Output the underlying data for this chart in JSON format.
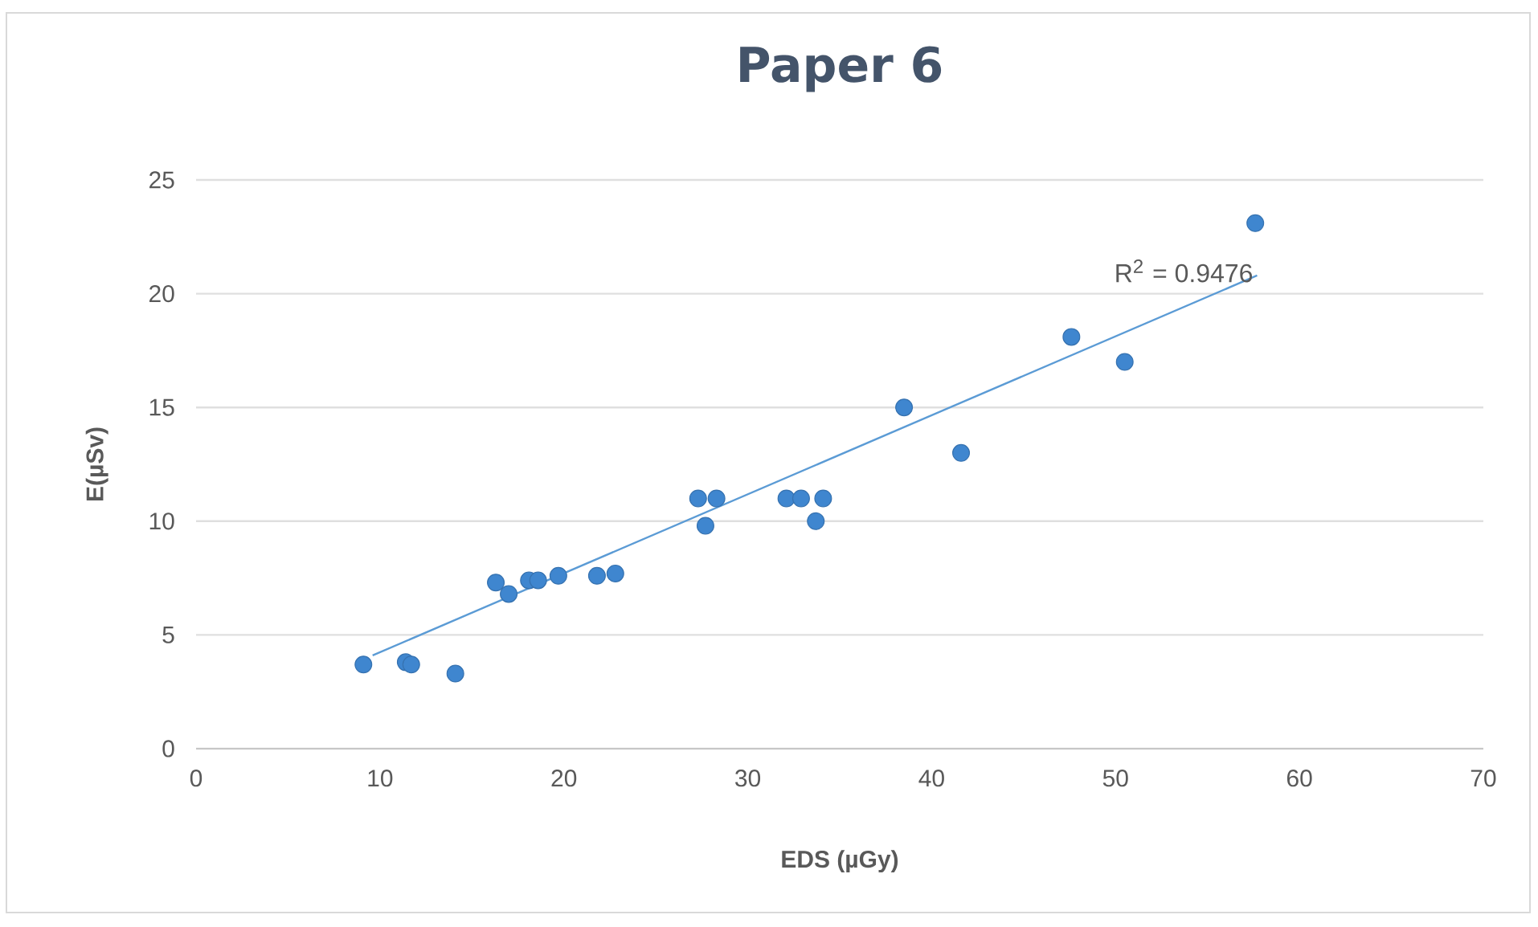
{
  "chart_data": {
    "type": "scatter",
    "title": "Paper 6",
    "xlabel": "EDS  (µGy)",
    "ylabel": "E(µSv)",
    "xlim": [
      0,
      70
    ],
    "xticks": [
      0,
      10,
      20,
      30,
      40,
      50,
      60,
      70
    ],
    "ylim": [
      0,
      25
    ],
    "yticks": [
      0,
      5,
      10,
      15,
      20,
      25
    ],
    "grid": "y",
    "annotations": [
      "R$^{2}$ = 0.9476"
    ],
    "series": [
      {
        "color": "#3f86cf",
        "marker": "circle",
        "x": [
          9.1,
          11.4,
          11.7,
          14.1,
          16.3,
          17.0,
          18.1,
          18.6,
          19.7,
          21.8,
          22.8,
          27.3,
          28.3,
          27.7,
          32.1,
          32.9,
          34.1,
          33.7,
          38.5,
          41.6,
          47.6,
          50.5,
          57.6
        ],
        "values": [
          3.7,
          3.8,
          3.7,
          3.3,
          7.3,
          6.8,
          7.4,
          7.4,
          7.6,
          7.6,
          7.7,
          11.0,
          11.0,
          9.8,
          11.0,
          11.0,
          11.0,
          10.0,
          15.0,
          13.0,
          18.1,
          17.0,
          23.1
        ]
      },
      {
        "type": "line",
        "color": "#5b9bd5",
        "marker": "none",
        "x": [
          9.6,
          57.7
        ],
        "values": [
          4.1,
          20.8
        ]
      }
    ]
  }
}
